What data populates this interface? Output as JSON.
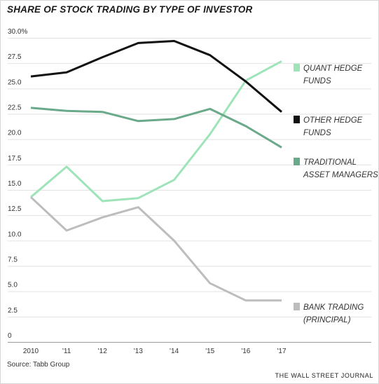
{
  "chart_data": {
    "type": "line",
    "title": "SHARE OF STOCK TRADING BY TYPE OF INVESTOR",
    "xlabel": "",
    "ylabel": "",
    "x": [
      "2010",
      "'11",
      "'12",
      "'13",
      "'14",
      "'15",
      "'16",
      "'17"
    ],
    "ylim": [
      0,
      30
    ],
    "y_ticks": [
      {
        "value": 0,
        "label": "0"
      },
      {
        "value": 2.5,
        "label": "2.5"
      },
      {
        "value": 5,
        "label": "5.0"
      },
      {
        "value": 7.5,
        "label": "7.5"
      },
      {
        "value": 10,
        "label": "10.0"
      },
      {
        "value": 12.5,
        "label": "12.5"
      },
      {
        "value": 15,
        "label": "15.0"
      },
      {
        "value": 17.5,
        "label": "17.5"
      },
      {
        "value": 20,
        "label": "20.0"
      },
      {
        "value": 22.5,
        "label": "22.5"
      },
      {
        "value": 25,
        "label": "25.0"
      },
      {
        "value": 27.5,
        "label": "27.5"
      },
      {
        "value": 30,
        "label": "30.0%"
      }
    ],
    "grid": true,
    "legend_position": "right",
    "series": [
      {
        "name": "QUANT HEDGE FUNDS",
        "label_lines": [
          "QUANT HEDGE",
          "FUNDS"
        ],
        "color": "#9ee4b8",
        "values": [
          13.6,
          16.6,
          13.2,
          13.5,
          15.3,
          19.8,
          25.1,
          27.0
        ]
      },
      {
        "name": "OTHER HEDGE FUNDS",
        "label_lines": [
          "OTHER HEDGE",
          "FUNDS"
        ],
        "color": "#111111",
        "values": [
          25.5,
          25.9,
          27.4,
          28.8,
          29.0,
          27.6,
          25.0,
          22.0
        ]
      },
      {
        "name": "TRADITIONAL ASSET MANAGERS",
        "label_lines": [
          "TRADITIONAL",
          "ASSET MANAGERS"
        ],
        "color": "#6aa98a",
        "values": [
          22.4,
          22.1,
          22.0,
          21.1,
          21.3,
          22.3,
          20.6,
          18.5
        ]
      },
      {
        "name": "BANK TRADING (PRINCIPAL)",
        "label_lines": [
          "BANK TRADING",
          "(PRINCIPAL)"
        ],
        "color": "#bdbdbd",
        "values": [
          13.6,
          10.3,
          11.6,
          12.6,
          9.3,
          5.1,
          3.4,
          3.4
        ]
      }
    ]
  },
  "footer": {
    "source": "Source: Tabb Group",
    "publisher": "THE WALL STREET JOURNAL"
  }
}
